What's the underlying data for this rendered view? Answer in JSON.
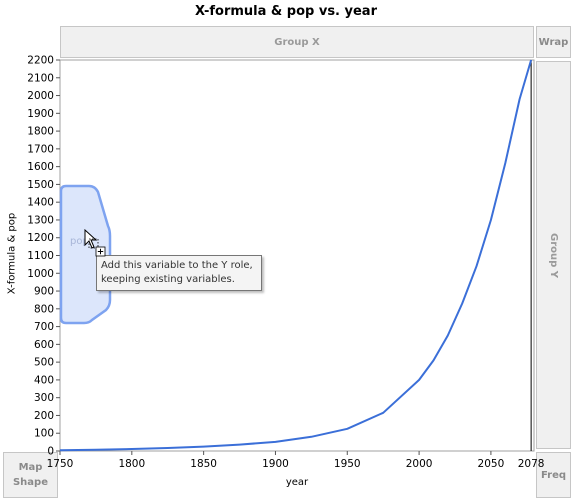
{
  "window": {
    "title": "X-formula & pop vs. year"
  },
  "drop_zones": {
    "group_x": "Group X",
    "wrap": "Wrap",
    "group_y": "Group Y",
    "map_shape_line1": "Map",
    "map_shape_line2": "Shape",
    "freq": "Freq"
  },
  "drag": {
    "variable_label": "pop",
    "tooltip_line1": "Add this variable to the Y role,",
    "tooltip_line2": "keeping existing variables."
  },
  "colors": {
    "series": "#3b6fd8",
    "drop_region_fill": "#dce6fb",
    "drop_region_stroke": "#7ea3f0"
  },
  "icons": {
    "cursor": "arrow-cursor-with-plus-icon"
  },
  "chart_data": {
    "type": "line",
    "title": "X-formula & pop vs. year",
    "xlabel": "year",
    "ylabel": "X-formula & pop",
    "xlim": [
      1750,
      2080
    ],
    "ylim": [
      0,
      2200
    ],
    "x_ticks": [
      1750,
      1800,
      1850,
      1900,
      1950,
      2000,
      2050
    ],
    "y_ticks": [
      0,
      100,
      200,
      300,
      400,
      500,
      600,
      700,
      800,
      900,
      1000,
      1100,
      1200,
      1300,
      1400,
      1500,
      1600,
      1700,
      1800,
      1900,
      2000,
      2100,
      2200
    ],
    "reference_line": {
      "x": 2078,
      "label": "2078"
    },
    "grid": false,
    "series": [
      {
        "x": [
          1750,
          1775,
          1800,
          1825,
          1850,
          1875,
          1900,
          1925,
          1950,
          1975,
          2000,
          2010,
          2020,
          2030,
          2040,
          2050,
          2060,
          2070,
          2078
        ],
        "values": [
          4,
          7,
          11,
          17,
          25,
          36,
          51,
          80,
          125,
          215,
          400,
          510,
          650,
          830,
          1040,
          1300,
          1620,
          1980,
          2200
        ]
      }
    ]
  }
}
